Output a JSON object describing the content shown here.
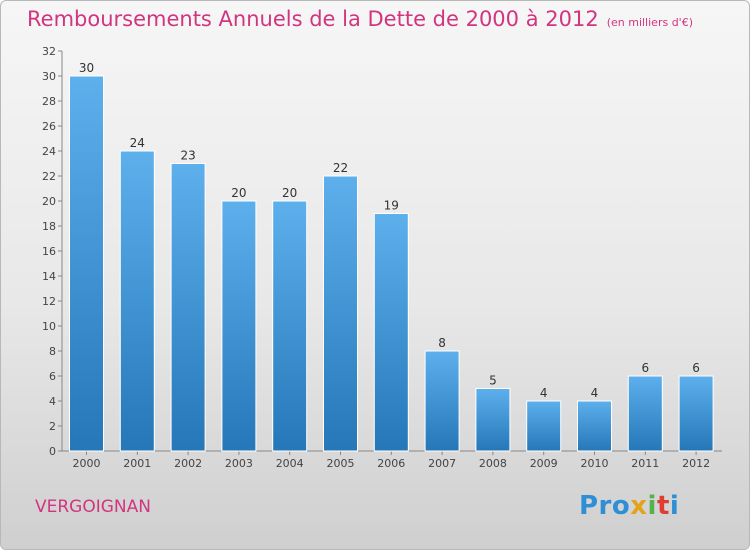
{
  "chart_data": {
    "type": "bar",
    "title": "Remboursements Annuels de la Dette de 2000 à 2012",
    "unit": "(en milliers d'€)",
    "categories": [
      "2000",
      "2001",
      "2002",
      "2003",
      "2004",
      "2005",
      "2006",
      "2007",
      "2008",
      "2009",
      "2010",
      "2011",
      "2012"
    ],
    "values": [
      30,
      24,
      23,
      20,
      20,
      22,
      19,
      8,
      5,
      4,
      4,
      6,
      6
    ],
    "ylim": [
      0,
      32
    ],
    "yticks": [
      0,
      2,
      4,
      6,
      8,
      10,
      12,
      14,
      16,
      18,
      20,
      22,
      24,
      26,
      28,
      30,
      32
    ],
    "xlabel": "",
    "ylabel": "",
    "colors": {
      "bar_top": "#5db0ec",
      "bar_bottom": "#2577b8",
      "accent": "#d2357f"
    }
  },
  "footer": {
    "commune": "VERGOIGNAN",
    "logo": "Proxiti"
  }
}
